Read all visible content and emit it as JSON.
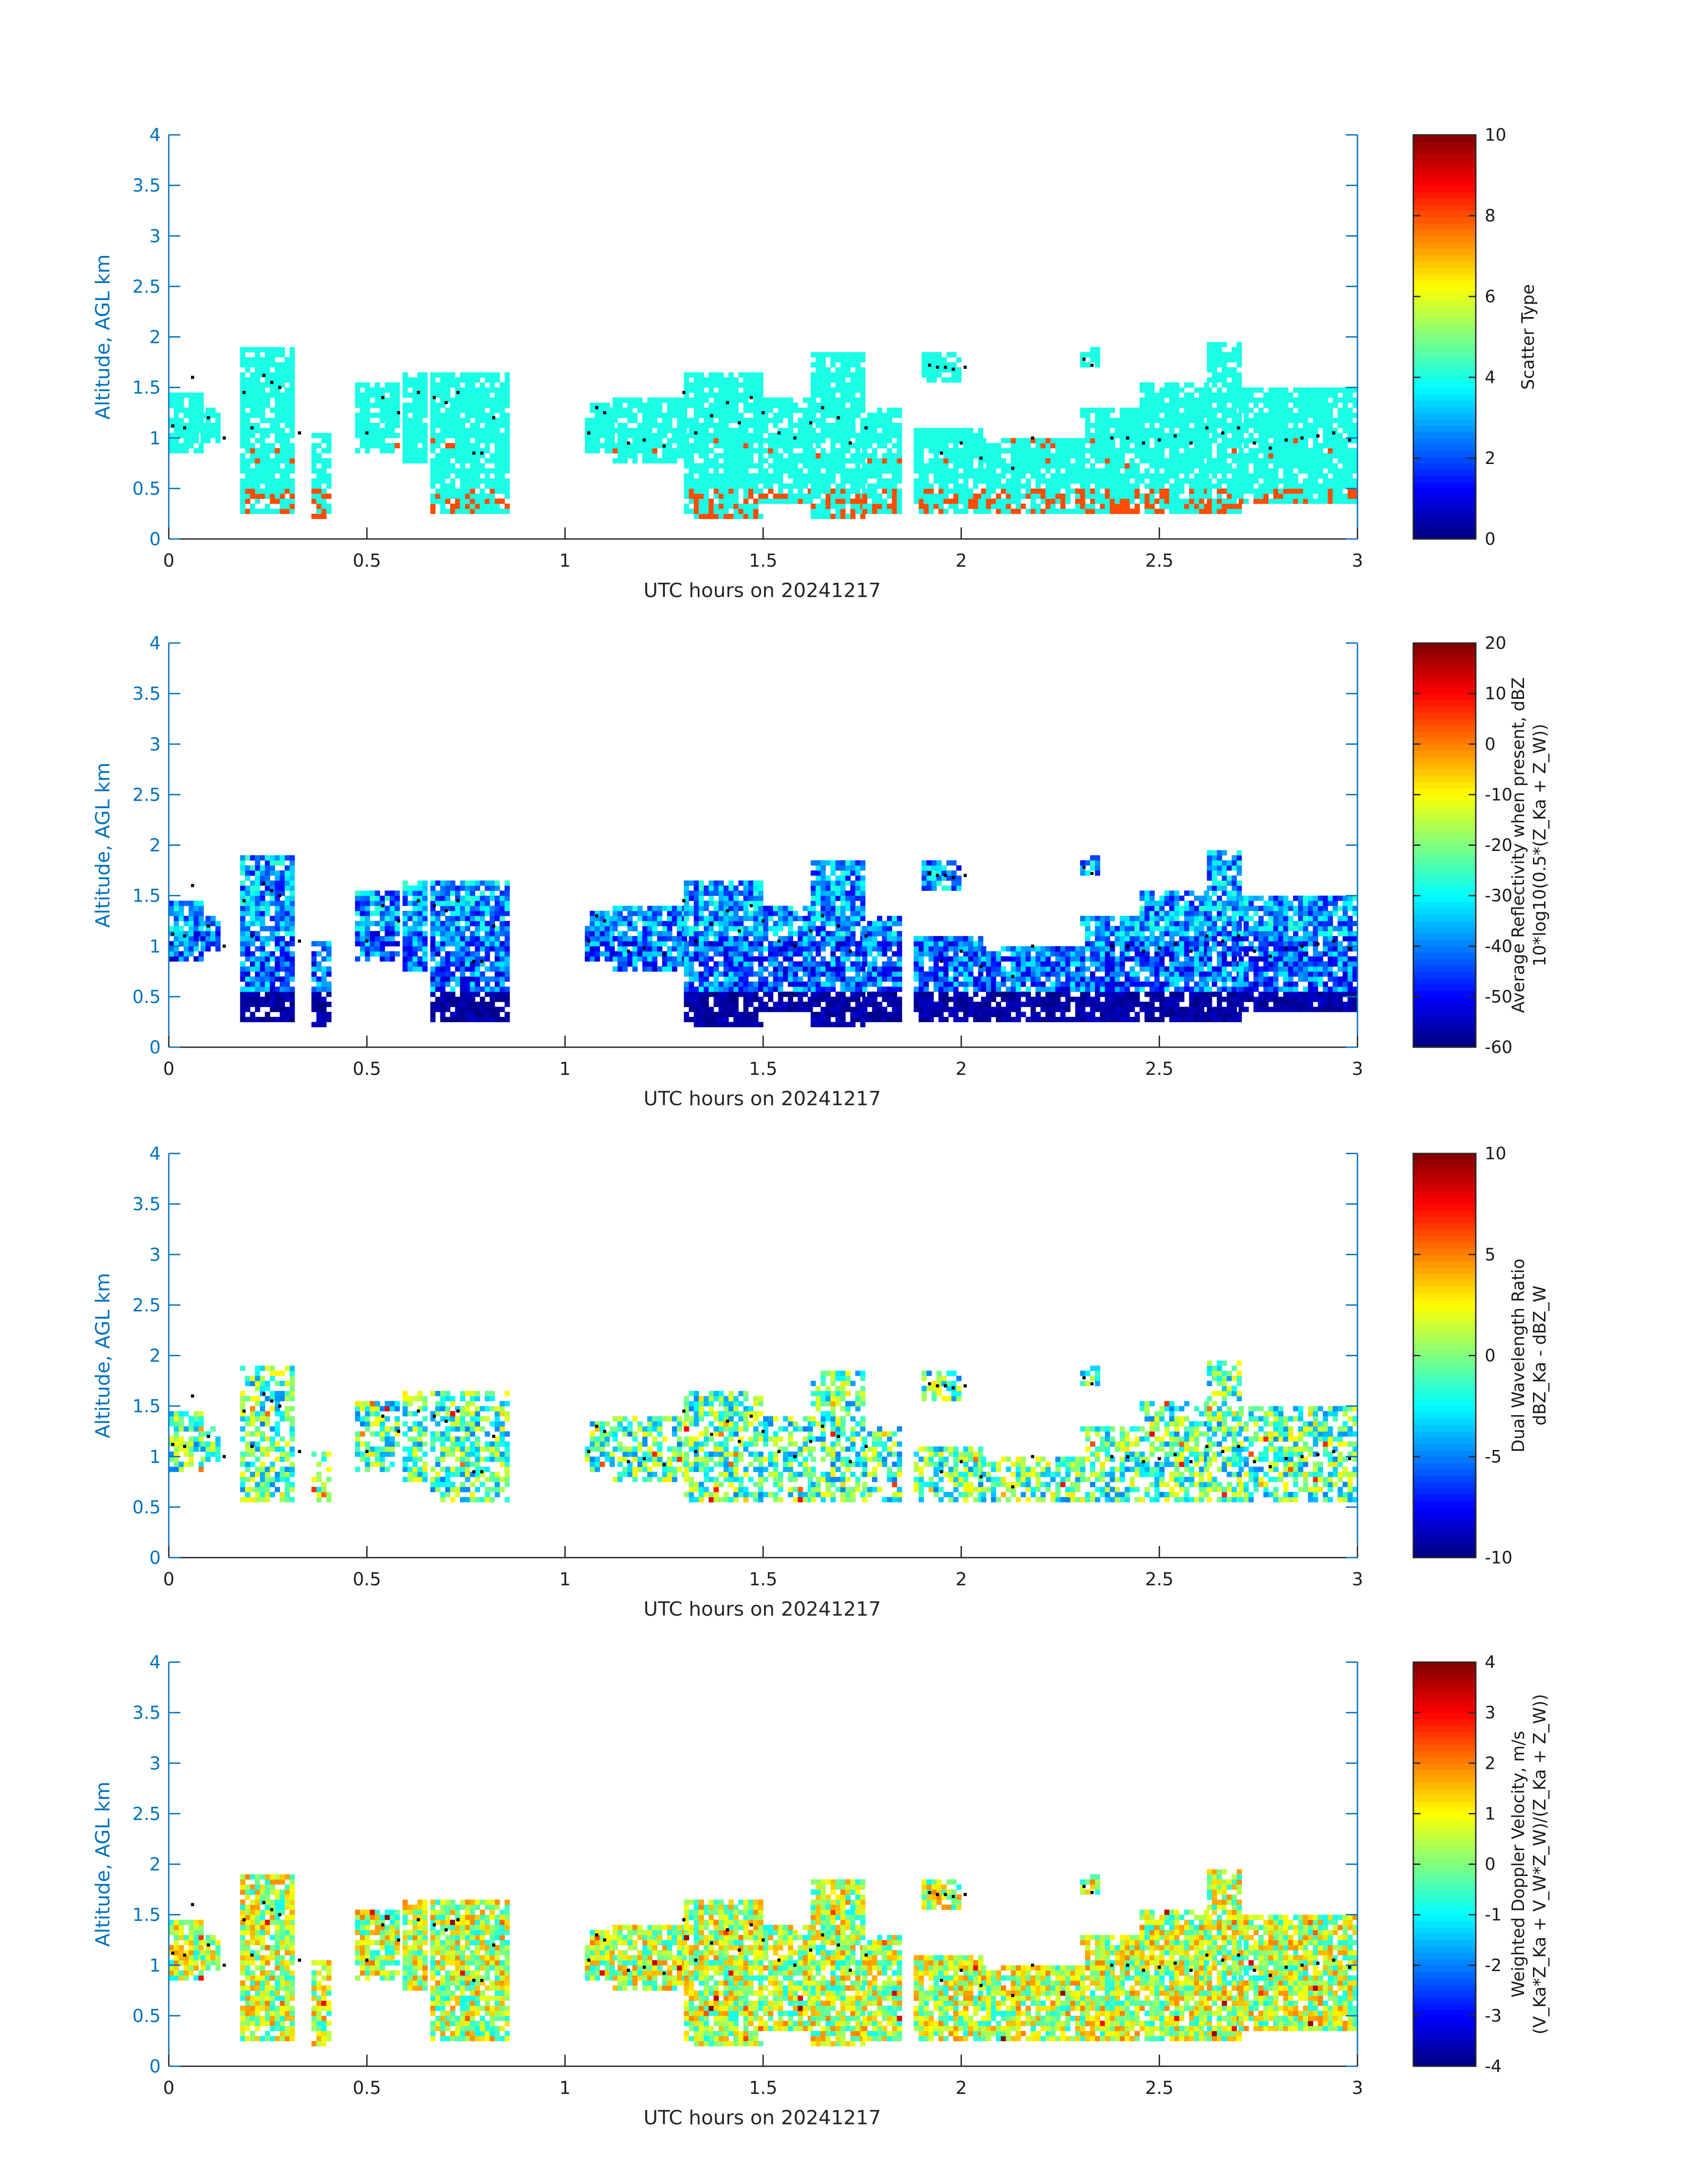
{
  "chart_data": [
    {
      "type": "heatmap",
      "panel": "scatter-type",
      "xlabel": "UTC hours on 20241217",
      "ylabel": "Altitude, AGL km",
      "xlim": [
        0,
        3
      ],
      "ylim": [
        0,
        4
      ],
      "xticks": [
        "0",
        "0.5",
        "1",
        "1.5",
        "2",
        "2.5",
        "3"
      ],
      "yticks": [
        "0",
        "0.5",
        "1",
        "1.5",
        "2",
        "2.5",
        "3",
        "3.5",
        "4"
      ],
      "colorbar": {
        "label_lines": [
          "Scatter Type"
        ],
        "range": [
          0,
          10
        ],
        "ticks": [
          "0",
          "2",
          "4",
          "6",
          "8",
          "10"
        ]
      },
      "field": "scatter_type",
      "field_range": [
        0,
        10
      ],
      "dominant_values": [
        4,
        8
      ]
    },
    {
      "type": "heatmap",
      "panel": "reflectivity",
      "xlabel": "UTC hours on 20241217",
      "ylabel": "Altitude, AGL km",
      "xlim": [
        0,
        3
      ],
      "ylim": [
        0,
        4
      ],
      "xticks": [
        "0",
        "0.5",
        "1",
        "1.5",
        "2",
        "2.5",
        "3"
      ],
      "yticks": [
        "0",
        "0.5",
        "1",
        "1.5",
        "2",
        "2.5",
        "3",
        "3.5",
        "4"
      ],
      "colorbar": {
        "label_lines": [
          "Average Reflectivity when present, dBZ",
          "10*log10(0.5*(Z_Ka + Z_W))"
        ],
        "range": [
          -60,
          20
        ],
        "ticks": [
          "-60",
          "-50",
          "-40",
          "-30",
          "-20",
          "-10",
          "0",
          "10",
          "20"
        ]
      },
      "field": "reflectivity_dbz",
      "field_range": [
        -60,
        20
      ]
    },
    {
      "type": "heatmap",
      "panel": "dwr",
      "xlabel": "UTC hours on 20241217",
      "ylabel": "Altitude, AGL km",
      "xlim": [
        0,
        3
      ],
      "ylim": [
        0,
        4
      ],
      "xticks": [
        "0",
        "0.5",
        "1",
        "1.5",
        "2",
        "2.5",
        "3"
      ],
      "yticks": [
        "0",
        "0.5",
        "1",
        "1.5",
        "2",
        "2.5",
        "3",
        "3.5",
        "4"
      ],
      "colorbar": {
        "label_lines": [
          "Dual Wavelength Ratio",
          "dBZ_Ka - dBZ_W"
        ],
        "range": [
          -10,
          10
        ],
        "ticks": [
          "-10",
          "-5",
          "0",
          "5",
          "10"
        ]
      },
      "field": "dwr_db",
      "field_range": [
        -10,
        10
      ]
    },
    {
      "type": "heatmap",
      "panel": "doppler-velocity",
      "xlabel": "UTC hours on 20241217",
      "ylabel": "Altitude, AGL km",
      "xlim": [
        0,
        3
      ],
      "ylim": [
        0,
        4
      ],
      "xticks": [
        "0",
        "0.5",
        "1",
        "1.5",
        "2",
        "2.5",
        "3"
      ],
      "yticks": [
        "0",
        "0.5",
        "1",
        "1.5",
        "2",
        "2.5",
        "3",
        "3.5",
        "4"
      ],
      "colorbar": {
        "label_lines": [
          "Weighted Doppler Velocity, m/s",
          "(V_Ka*Z_Ka + V_W*Z_W)/(Z_Ka + Z_W))"
        ],
        "range": [
          -4,
          4
        ],
        "ticks": [
          "-4",
          "-3",
          "-2",
          "-1",
          "0",
          "1",
          "2",
          "3",
          "4"
        ]
      },
      "field": "doppler_velocity_ms",
      "field_range": [
        -4,
        4
      ]
    }
  ],
  "echo_columns": [
    {
      "t0": 0.0,
      "t1": 0.08,
      "b": 0.85,
      "tp": 1.45
    },
    {
      "t0": 0.08,
      "t1": 0.12,
      "b": 0.95,
      "tp": 1.3
    },
    {
      "t0": 0.18,
      "t1": 0.31,
      "b": 0.25,
      "tp": 1.9
    },
    {
      "t0": 0.36,
      "t1": 0.4,
      "b": 0.2,
      "tp": 1.05
    },
    {
      "t0": 0.47,
      "t1": 0.58,
      "b": 0.85,
      "tp": 1.55
    },
    {
      "t0": 0.59,
      "t1": 0.65,
      "b": 0.75,
      "tp": 1.65
    },
    {
      "t0": 0.66,
      "t1": 0.85,
      "b": 0.25,
      "tp": 1.65
    },
    {
      "t0": 1.05,
      "t1": 1.12,
      "b": 0.85,
      "tp": 1.35
    },
    {
      "t0": 1.12,
      "t1": 1.3,
      "b": 0.75,
      "tp": 1.4
    },
    {
      "t0": 1.3,
      "t1": 1.5,
      "b": 0.2,
      "tp": 1.65
    },
    {
      "t0": 1.5,
      "t1": 1.62,
      "b": 0.35,
      "tp": 1.4
    },
    {
      "t0": 1.62,
      "t1": 1.75,
      "b": 0.2,
      "tp": 1.85
    },
    {
      "t0": 1.75,
      "t1": 1.85,
      "b": 0.25,
      "tp": 1.3
    },
    {
      "t0": 1.9,
      "t1": 2.0,
      "b": 1.55,
      "tp": 1.85
    },
    {
      "t0": 1.88,
      "t1": 2.05,
      "b": 0.25,
      "tp": 1.1
    },
    {
      "t0": 2.05,
      "t1": 2.3,
      "b": 0.25,
      "tp": 1.0
    },
    {
      "t0": 2.3,
      "t1": 2.34,
      "b": 1.7,
      "tp": 1.9
    },
    {
      "t0": 2.3,
      "t1": 2.45,
      "b": 0.25,
      "tp": 1.3
    },
    {
      "t0": 2.45,
      "t1": 2.62,
      "b": 0.25,
      "tp": 1.55
    },
    {
      "t0": 2.62,
      "t1": 2.7,
      "b": 0.25,
      "tp": 1.95
    },
    {
      "t0": 2.7,
      "t1": 3.0,
      "b": 0.35,
      "tp": 1.5
    }
  ],
  "cloud_top_markers": [
    [
      0.01,
      1.12
    ],
    [
      0.04,
      1.1
    ],
    [
      0.06,
      1.6
    ],
    [
      0.1,
      1.2
    ],
    [
      0.14,
      1.0
    ],
    [
      0.19,
      1.45
    ],
    [
      0.21,
      1.1
    ],
    [
      0.24,
      1.62
    ],
    [
      0.26,
      1.55
    ],
    [
      0.28,
      1.5
    ],
    [
      0.33,
      1.05
    ],
    [
      0.5,
      1.05
    ],
    [
      0.54,
      1.4
    ],
    [
      0.58,
      1.25
    ],
    [
      0.63,
      1.45
    ],
    [
      0.67,
      1.4
    ],
    [
      0.7,
      1.35
    ],
    [
      0.73,
      1.45
    ],
    [
      0.77,
      0.85
    ],
    [
      0.79,
      0.85
    ],
    [
      0.82,
      1.2
    ],
    [
      1.06,
      1.05
    ],
    [
      1.08,
      1.3
    ],
    [
      1.1,
      1.25
    ],
    [
      1.16,
      0.95
    ],
    [
      1.2,
      0.98
    ],
    [
      1.25,
      0.92
    ],
    [
      1.3,
      1.45
    ],
    [
      1.33,
      1.05
    ],
    [
      1.37,
      1.22
    ],
    [
      1.41,
      1.35
    ],
    [
      1.44,
      1.15
    ],
    [
      1.47,
      1.4
    ],
    [
      1.5,
      1.25
    ],
    [
      1.54,
      1.05
    ],
    [
      1.58,
      1.0
    ],
    [
      1.62,
      1.15
    ],
    [
      1.65,
      1.3
    ],
    [
      1.69,
      1.2
    ],
    [
      1.72,
      0.95
    ],
    [
      1.76,
      1.1
    ],
    [
      1.92,
      1.72
    ],
    [
      1.94,
      1.7
    ],
    [
      1.96,
      1.7
    ],
    [
      1.98,
      1.68
    ],
    [
      2.01,
      1.7
    ],
    [
      1.95,
      0.85
    ],
    [
      2.0,
      0.95
    ],
    [
      2.05,
      0.8
    ],
    [
      2.13,
      0.7
    ],
    [
      2.18,
      1.0
    ],
    [
      2.31,
      1.78
    ],
    [
      2.33,
      1.72
    ],
    [
      2.38,
      1.0
    ],
    [
      2.42,
      1.0
    ],
    [
      2.46,
      0.95
    ],
    [
      2.5,
      0.98
    ],
    [
      2.54,
      1.02
    ],
    [
      2.58,
      0.95
    ],
    [
      2.62,
      1.1
    ],
    [
      2.66,
      1.05
    ],
    [
      2.7,
      1.1
    ],
    [
      2.74,
      0.95
    ],
    [
      2.78,
      0.9
    ],
    [
      2.82,
      0.98
    ],
    [
      2.86,
      1.0
    ],
    [
      2.9,
      1.02
    ],
    [
      2.94,
      1.05
    ],
    [
      2.98,
      0.98
    ]
  ]
}
